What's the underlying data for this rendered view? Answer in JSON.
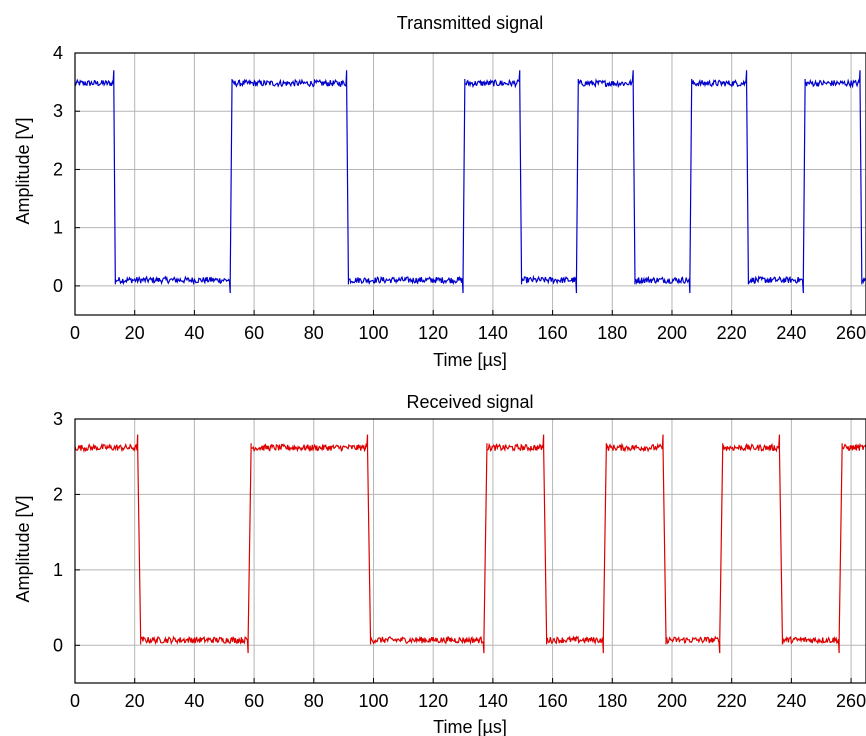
{
  "chart_data": [
    {
      "type": "line",
      "title": "Transmitted signal",
      "xlabel": "Time [µs]",
      "ylabel": "Amplitude [V]",
      "xlim": [
        0,
        265
      ],
      "ylim": [
        -0.5,
        4
      ],
      "xticks": [
        0,
        20,
        40,
        60,
        80,
        100,
        120,
        140,
        160,
        180,
        200,
        220,
        240,
        260
      ],
      "yticks": [
        0,
        1,
        2,
        3,
        4
      ],
      "grid": true,
      "color": "#0000cc",
      "high_level": 3.48,
      "low_level": 0.1,
      "series": [
        {
          "x": [
            0,
            13,
            13.5,
            52,
            52.6,
            91,
            91.6,
            130,
            130.6,
            149,
            149.6,
            168,
            168.6,
            187,
            187.6,
            206,
            206.6,
            225,
            225.6,
            244,
            244.6,
            263,
            263.6,
            265
          ],
          "y": [
            3.48,
            3.48,
            0.1,
            0.1,
            3.48,
            3.48,
            0.1,
            0.1,
            3.48,
            3.48,
            0.1,
            0.1,
            3.48,
            3.48,
            0.1,
            0.1,
            3.48,
            3.48,
            0.1,
            0.1,
            3.48,
            3.48,
            0.1,
            0.1
          ]
        }
      ]
    },
    {
      "type": "line",
      "title": "Received signal",
      "xlabel": "Time [µs]",
      "ylabel": "Amplitude [V]",
      "xlim": [
        0,
        265
      ],
      "ylim": [
        -0.5,
        3
      ],
      "xticks": [
        0,
        20,
        40,
        60,
        80,
        100,
        120,
        140,
        160,
        180,
        200,
        220,
        240,
        260
      ],
      "yticks": [
        0,
        1,
        2,
        3
      ],
      "grid": true,
      "color": "#dd0000",
      "high_level": 2.62,
      "low_level": 0.07,
      "series": [
        {
          "x": [
            0,
            21,
            22,
            58,
            59,
            98,
            99,
            137,
            138,
            157,
            158,
            177,
            178,
            197,
            198,
            216,
            217,
            236,
            237,
            256,
            257,
            265
          ],
          "y": [
            2.62,
            2.62,
            0.07,
            0.07,
            2.62,
            2.62,
            0.07,
            0.07,
            2.62,
            2.62,
            0.07,
            0.07,
            2.62,
            2.62,
            0.07,
            0.07,
            2.62,
            2.62,
            0.07,
            0.07,
            2.62,
            2.62
          ]
        }
      ]
    }
  ]
}
